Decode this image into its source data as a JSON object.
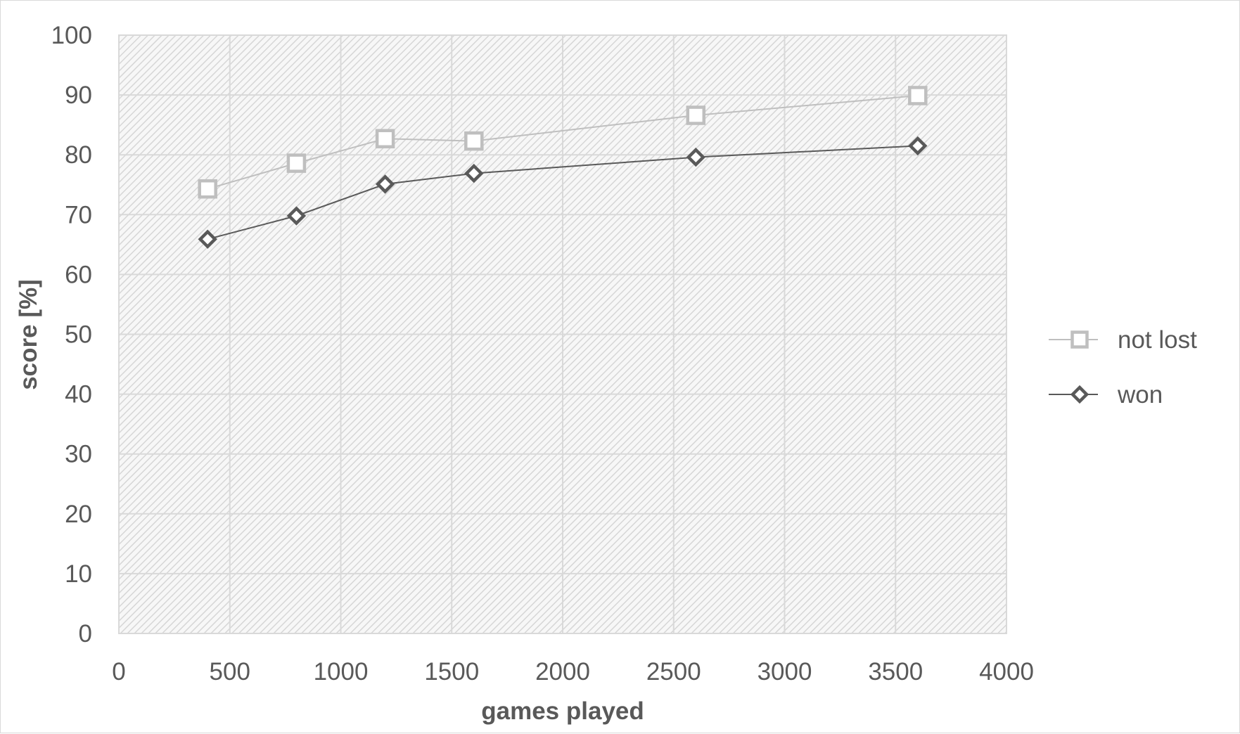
{
  "chart_data": {
    "type": "line",
    "title": "",
    "xlabel": "games played",
    "ylabel": "score [%]",
    "xlim": [
      0,
      4000
    ],
    "ylim": [
      0,
      100
    ],
    "x_ticks": [
      0,
      500,
      1000,
      1500,
      2000,
      2500,
      3000,
      3500,
      4000
    ],
    "y_ticks": [
      0,
      10,
      20,
      30,
      40,
      50,
      60,
      70,
      80,
      90,
      100
    ],
    "grid": true,
    "plot_background": "diagonal hatch, light gray",
    "legend_position": "right",
    "series": [
      {
        "name": "not lost",
        "marker": "square",
        "color": "#bfbfbf",
        "x": [
          400,
          800,
          1200,
          1600,
          2600,
          3600
        ],
        "y": [
          74.3,
          78.6,
          82.7,
          82.3,
          86.6,
          89.9
        ]
      },
      {
        "name": "won",
        "marker": "diamond",
        "color": "#595959",
        "x": [
          400,
          800,
          1200,
          1600,
          2600,
          3600
        ],
        "y": [
          65.9,
          69.8,
          75.1,
          76.9,
          79.6,
          81.5
        ]
      }
    ]
  }
}
